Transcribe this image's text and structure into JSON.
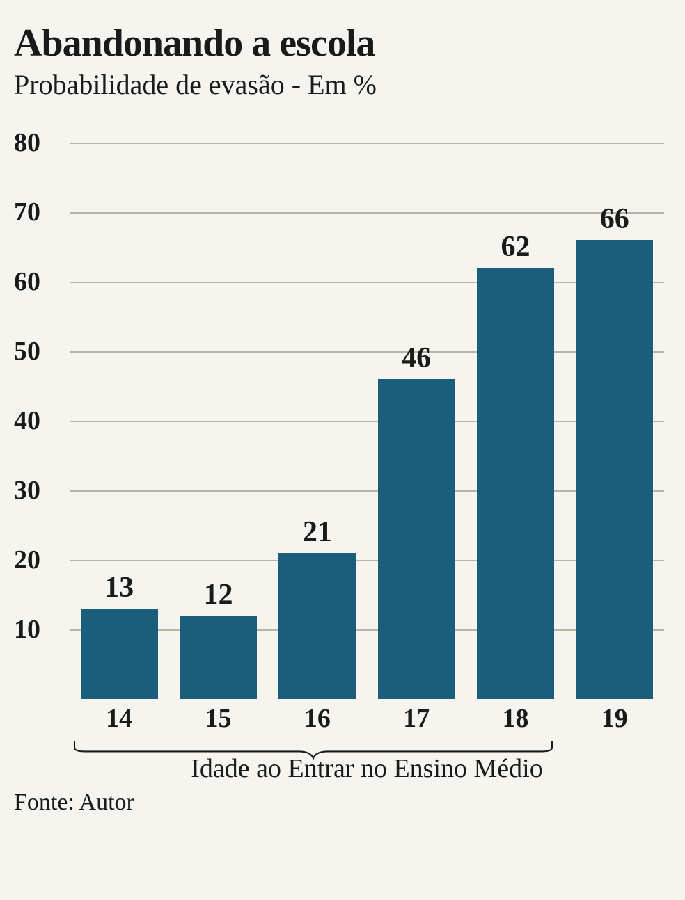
{
  "title": "Abandonando a escola",
  "subtitle": "Probabilidade de evasão - Em %",
  "source": "Fonte: Autor",
  "xlabel": "Idade ao Entrar no Ensino Médio",
  "chart": {
    "type": "bar",
    "categories": [
      "14",
      "15",
      "16",
      "17",
      "18",
      "19"
    ],
    "values": [
      13,
      12,
      21,
      46,
      62,
      66
    ],
    "value_labels": [
      "13",
      "12",
      "21",
      "46",
      "62",
      "66"
    ],
    "ymax": 80,
    "ytick_step": 10,
    "yticks": [
      10,
      20,
      30,
      40,
      50,
      60,
      70,
      80
    ],
    "bar_color": "#1b5e7c",
    "grid_color": "#b8b4a6",
    "background_color": "#f6f4ee",
    "text_color": "#1a1a1a",
    "title_fontsize": 56,
    "subtitle_fontsize": 40,
    "tick_fontsize": 38,
    "value_fontsize": 42,
    "xlabel_fontsize": 38,
    "source_fontsize": 34,
    "bar_width_pct": 78
  }
}
